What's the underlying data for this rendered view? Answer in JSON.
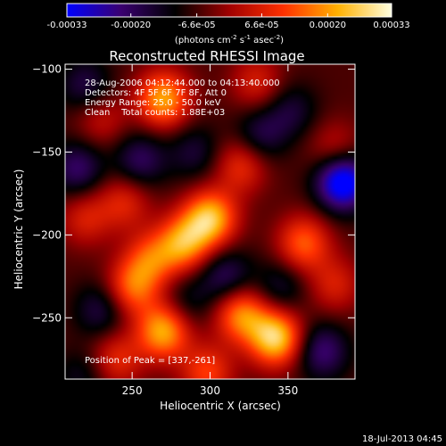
{
  "colorbar": {
    "tick_labels": [
      "-0.00033",
      "-0.00020",
      "-6.6e-05",
      "6.6e-05",
      "0.00020",
      "0.00033"
    ],
    "tick_values": [
      -0.00033,
      -0.0002,
      -6.6e-05,
      6.6e-05,
      0.0002,
      0.00033
    ],
    "range": [
      -0.00033,
      0.00033
    ],
    "unit_prefix": "(photons cm",
    "unit_exp1": "-2",
    "unit_mid": " s",
    "unit_exp2": "-1",
    "unit_mid2": " asec",
    "unit_exp3": "-2",
    "unit_suffix": ")",
    "colors": [
      "#0000ff",
      "#3a0070",
      "#000000",
      "#a00000",
      "#ff3000",
      "#ffb000",
      "#ffffe0"
    ]
  },
  "chart_data": {
    "type": "heatmap",
    "title": "Reconstructed RHESSI Image",
    "xlabel": "Heliocentric X (arcsec)",
    "ylabel": "Heliocentric Y (arcsec)",
    "xlim": [
      207,
      393
    ],
    "ylim": [
      -287,
      -97
    ],
    "x_ticks": [
      250,
      300,
      350
    ],
    "x_tick_labels": [
      "250",
      "300",
      "350"
    ],
    "y_ticks": [
      -100,
      -150,
      -200,
      -250
    ],
    "y_tick_labels": [
      "−100",
      "−150",
      "−200",
      "−250"
    ],
    "peak_position": [
      337,
      -261
    ],
    "blobs": [
      {
        "x": 270,
        "y": -118,
        "v": 0.00027
      },
      {
        "x": 330,
        "y": -108,
        "v": 0.00012
      },
      {
        "x": 300,
        "y": -190,
        "v": 0.0003
      },
      {
        "x": 283,
        "y": -205,
        "v": 0.00025
      },
      {
        "x": 262,
        "y": -215,
        "v": 0.00018
      },
      {
        "x": 320,
        "y": -158,
        "v": 0.00015
      },
      {
        "x": 245,
        "y": -180,
        "v": 0.00013
      },
      {
        "x": 230,
        "y": -130,
        "v": 0.0001
      },
      {
        "x": 220,
        "y": -190,
        "v": 0.00012
      },
      {
        "x": 360,
        "y": -205,
        "v": 0.0002
      },
      {
        "x": 380,
        "y": -230,
        "v": 0.00012
      },
      {
        "x": 342,
        "y": -262,
        "v": 0.00033
      },
      {
        "x": 320,
        "y": -248,
        "v": 0.00024
      },
      {
        "x": 270,
        "y": -258,
        "v": 0.00028
      },
      {
        "x": 250,
        "y": -232,
        "v": 0.0002
      },
      {
        "x": 240,
        "y": -275,
        "v": 0.00014
      },
      {
        "x": 298,
        "y": -283,
        "v": 0.00017
      },
      {
        "x": 380,
        "y": -148,
        "v": 0.0001
      },
      {
        "x": 352,
        "y": -125,
        "v": -0.0001
      },
      {
        "x": 385,
        "y": -168,
        "v": -0.00032
      },
      {
        "x": 332,
        "y": -140,
        "v": -0.00012
      },
      {
        "x": 290,
        "y": -150,
        "v": -0.0001
      },
      {
        "x": 255,
        "y": -155,
        "v": -0.00014
      },
      {
        "x": 220,
        "y": -110,
        "v": -0.00012
      },
      {
        "x": 215,
        "y": -160,
        "v": -0.00015
      },
      {
        "x": 230,
        "y": -245,
        "v": -0.00012
      },
      {
        "x": 310,
        "y": -225,
        "v": -0.00014
      },
      {
        "x": 372,
        "y": -270,
        "v": -0.00016
      },
      {
        "x": 345,
        "y": -232,
        "v": -0.0001
      },
      {
        "x": 285,
        "y": -240,
        "v": -8e-05
      },
      {
        "x": 218,
        "y": -285,
        "v": -8e-05
      }
    ]
  },
  "annotations": {
    "line1": "28-Aug-2006 04:12:44.000 to 04:13:40.000",
    "line2": "Detectors: 4F 5F 6F 7F 8F, Att 0",
    "line3": "Energy Range: 25.0 - 50.0 keV",
    "line4": "Clean    Total counts: 1.88E+03",
    "peak": "Position of Peak = [337,-261]"
  },
  "timestamp": "18-Jul-2013 04:45"
}
